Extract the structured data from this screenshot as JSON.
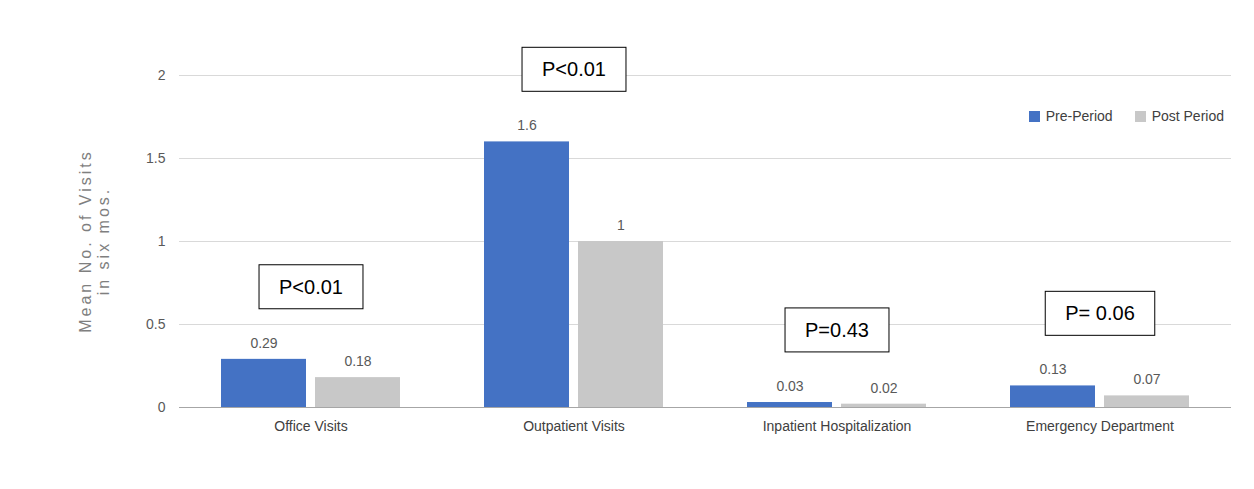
{
  "chart_data": {
    "type": "bar",
    "y_label": "Mean No. of Visits\nin six mos.",
    "categories": [
      "Office Visits",
      "Outpatient Visits",
      "Inpatient Hospitalization",
      "Emergency Department"
    ],
    "series": [
      {
        "name": "Pre-Period",
        "color": "#4472c4",
        "values": [
          0.29,
          1.6,
          0.03,
          0.13
        ]
      },
      {
        "name": "Post Period",
        "color": "#c8c8c8",
        "values": [
          0.18,
          1,
          0.02,
          0.07
        ]
      }
    ],
    "annotations": [
      {
        "category": "Office Visits",
        "text": "P<0.01"
      },
      {
        "category": "Outpatient Visits",
        "text": "P<0.01"
      },
      {
        "category": "Inpatient Hospitalization",
        "text": "P=0.43"
      },
      {
        "category": "Emergency Department",
        "text": "P= 0.06"
      }
    ],
    "ylim": [
      0,
      2
    ],
    "yticks": [
      0,
      0.5,
      1,
      1.5,
      2
    ],
    "grid": true,
    "legend": "top-right",
    "data_labels": true
  }
}
